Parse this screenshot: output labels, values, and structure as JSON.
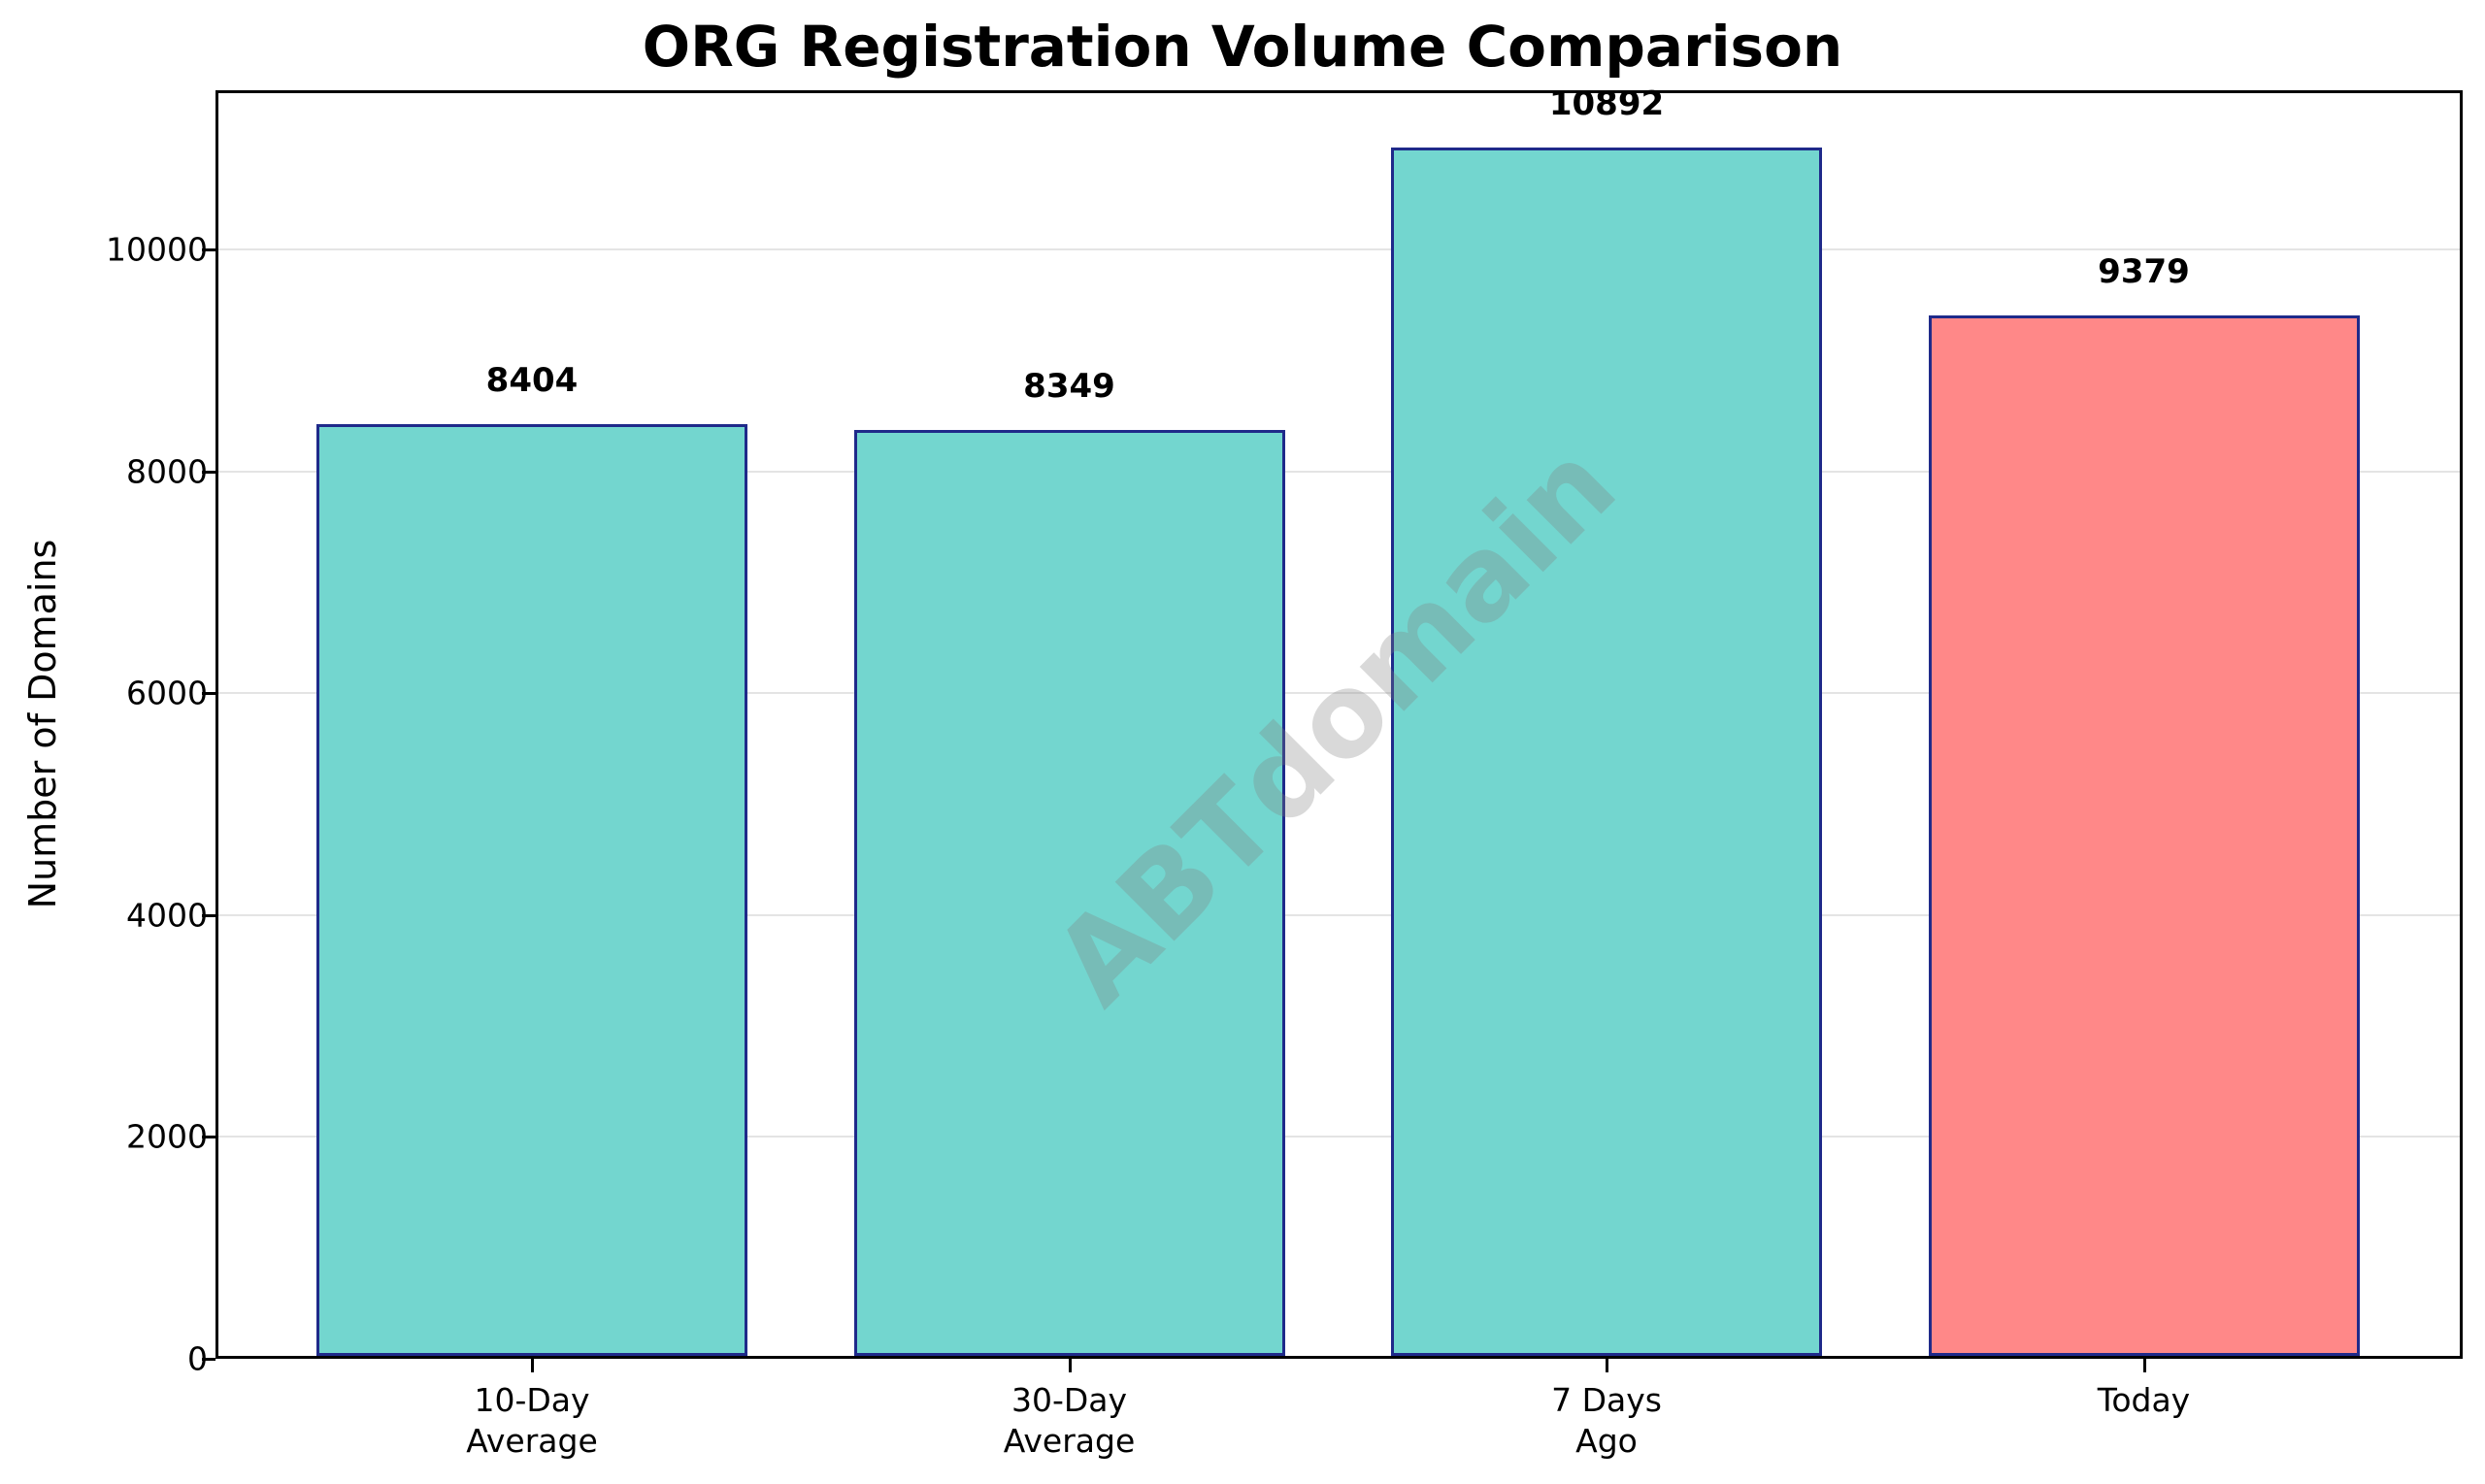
{
  "chart_data": {
    "type": "bar",
    "title": "ORG Registration Volume Comparison",
    "xlabel": "",
    "ylabel": "Number of Domains",
    "categories": [
      "10-Day\nAverage",
      "30-Day\nAverage",
      "7 Days\nAgo",
      "Today"
    ],
    "values": [
      8404,
      8349,
      10892,
      9379
    ],
    "value_labels": [
      "8404",
      "8349",
      "10892",
      "9379"
    ],
    "bar_colors": [
      "#73d6cf",
      "#73d6cf",
      "#73d6cf",
      "#ff8888"
    ],
    "bar_edge_color": "#1f2a8a",
    "ylim": [
      0,
      11437
    ],
    "yticks": [
      0,
      2000,
      4000,
      6000,
      8000,
      10000
    ],
    "ytick_labels": [
      "0",
      "2000",
      "4000",
      "6000",
      "8000",
      "10000"
    ],
    "grid": true,
    "legend": null,
    "watermark": "ABTdomain"
  }
}
